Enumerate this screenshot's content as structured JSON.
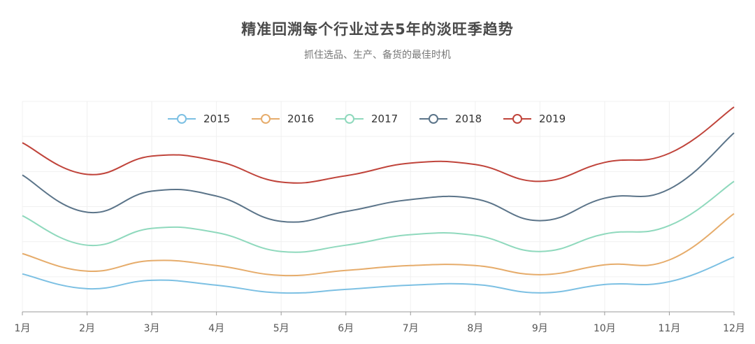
{
  "title": "精准回溯每个行业过去5年的淡旺季趋势",
  "subtitle": "抓住选品、生产、备货的最佳时机",
  "chart_data": {
    "type": "line",
    "smooth": true,
    "categories": [
      "1月",
      "2月",
      "3月",
      "4月",
      "5月",
      "6月",
      "7月",
      "8月",
      "9月",
      "10月",
      "11月",
      "12月"
    ],
    "ylim": [
      0,
      300
    ],
    "grid": true,
    "legend_position": "top-center",
    "series": [
      {
        "name": "2015",
        "color": "#7cc0e3",
        "values": [
          54,
          33,
          45,
          38,
          27,
          32,
          38,
          39,
          27,
          39,
          43,
          78
        ]
      },
      {
        "name": "2016",
        "color": "#e6ac6b",
        "values": [
          83,
          58,
          73,
          66,
          52,
          59,
          66,
          66,
          53,
          67,
          74,
          140
        ]
      },
      {
        "name": "2017",
        "color": "#8fd9bd",
        "values": [
          137,
          95,
          119,
          113,
          86,
          95,
          110,
          109,
          86,
          111,
          123,
          186
        ]
      },
      {
        "name": "2018",
        "color": "#5b7489",
        "values": [
          195,
          142,
          172,
          165,
          129,
          143,
          160,
          161,
          130,
          162,
          175,
          255
        ]
      },
      {
        "name": "2019",
        "color": "#c0443b",
        "values": [
          241,
          196,
          222,
          215,
          185,
          194,
          212,
          210,
          186,
          213,
          226,
          292
        ]
      }
    ]
  }
}
